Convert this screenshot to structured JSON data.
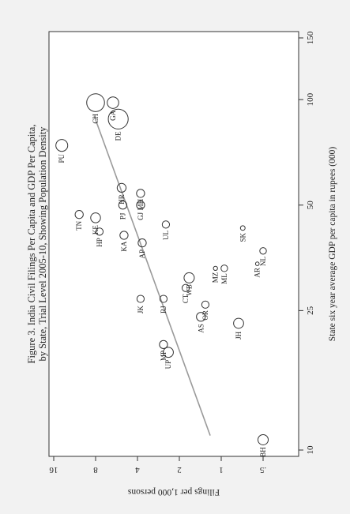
{
  "chart_data": {
    "type": "scatter",
    "title": "Figure 3. India Civil Filings Per Capita and GDP Per Capita,",
    "subtitle": "by State, Trial Level 2005-10, Showing Population Density",
    "xlabel": "State six year average GDP per capita in rupees (000)",
    "ylabel": "Filings per 1,000 persons",
    "x_scale": "log",
    "y_scale": "log",
    "xlim": [
      10,
      150
    ],
    "ylim": [
      0.5,
      16
    ],
    "x_ticks": [
      {
        "v": 10,
        "label": "10"
      },
      {
        "v": 25,
        "label": "25"
      },
      {
        "v": 50,
        "label": "50"
      },
      {
        "v": 100,
        "label": "100"
      },
      {
        "v": 150,
        "label": "150"
      }
    ],
    "y_ticks": [
      {
        "v": 16,
        "label": "16"
      },
      {
        "v": 8,
        "label": "8"
      },
      {
        "v": 4,
        "label": "4"
      },
      {
        "v": 2,
        "label": "2"
      },
      {
        "v": 1,
        "label": "1"
      },
      {
        "v": 0.5,
        "label": ".5"
      }
    ],
    "grid": false,
    "legend": "none",
    "fit_line": {
      "x": [
        11,
        90
      ],
      "y": [
        1.2,
        8.2
      ]
    },
    "points": [
      {
        "label": "PU",
        "x": 74,
        "y": 14,
        "size": 3.2
      },
      {
        "label": "CH",
        "x": 98,
        "y": 8.0,
        "size": 7.2
      },
      {
        "label": "GA",
        "x": 98,
        "y": 6.0,
        "size": 3.0
      },
      {
        "label": "DE",
        "x": 88,
        "y": 5.5,
        "size": 9.0
      },
      {
        "label": "HR",
        "x": 56,
        "y": 5.2,
        "size": 1.8
      },
      {
        "label": "MH",
        "x": 54,
        "y": 3.8,
        "size": 1.5
      },
      {
        "label": "GJ",
        "x": 50,
        "y": 3.8,
        "size": 1.5
      },
      {
        "label": "PJ",
        "x": 50,
        "y": 5.1,
        "size": 1.5
      },
      {
        "label": "TN",
        "x": 47,
        "y": 10.5,
        "size": 1.5
      },
      {
        "label": "KE",
        "x": 46,
        "y": 8.0,
        "size": 2.2
      },
      {
        "label": "HP",
        "x": 42,
        "y": 7.5,
        "size": 1.2
      },
      {
        "label": "KA",
        "x": 41,
        "y": 5.0,
        "size": 1.5
      },
      {
        "label": "AP",
        "x": 39,
        "y": 3.7,
        "size": 1.5
      },
      {
        "label": "UL",
        "x": 44,
        "y": 2.5,
        "size": 1.2
      },
      {
        "label": "WB",
        "x": 31,
        "y": 1.7,
        "size": 2.4
      },
      {
        "label": "CT",
        "x": 29,
        "y": 1.8,
        "size": 1.2
      },
      {
        "label": "MZ",
        "x": 33,
        "y": 1.1,
        "size": 0.4
      },
      {
        "label": "OR",
        "x": 26,
        "y": 1.3,
        "size": 1.2
      },
      {
        "label": "AS",
        "x": 24,
        "y": 1.4,
        "size": 1.8
      },
      {
        "label": "JK",
        "x": 27,
        "y": 3.8,
        "size": 1.2
      },
      {
        "label": "RJ",
        "x": 27,
        "y": 2.6,
        "size": 1.2
      },
      {
        "label": "MP",
        "x": 20,
        "y": 2.6,
        "size": 1.5
      },
      {
        "label": "UP",
        "x": 19,
        "y": 2.4,
        "size": 2.3
      },
      {
        "label": "ML",
        "x": 33,
        "y": 0.95,
        "size": 1.0
      },
      {
        "label": "SK",
        "x": 43,
        "y": 0.7,
        "size": 0.5
      },
      {
        "label": "AR",
        "x": 34,
        "y": 0.55,
        "size": 0.3
      },
      {
        "label": "NL",
        "x": 37,
        "y": 0.5,
        "size": 1.0
      },
      {
        "label": "JH",
        "x": 23,
        "y": 0.75,
        "size": 2.3
      },
      {
        "label": "BH",
        "x": 10.7,
        "y": 0.5,
        "size": 2.4
      }
    ]
  }
}
